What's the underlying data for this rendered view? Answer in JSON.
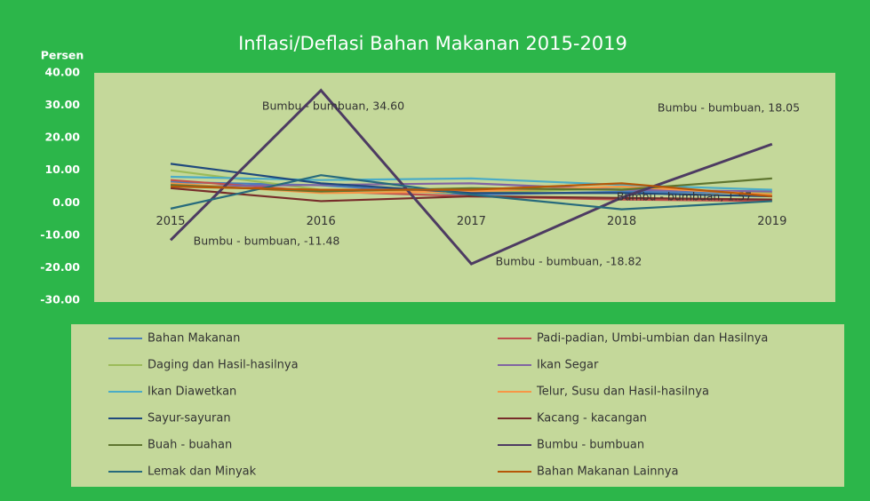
{
  "chart_data": {
    "type": "line",
    "title": "Inflasi/Deflasi Bahan Makanan 2015-2019",
    "y_label": "Persen",
    "categories": [
      "2015",
      "2016",
      "2017",
      "2018",
      "2019"
    ],
    "ylim": [
      -30,
      40
    ],
    "yticks": [
      {
        "value": -30,
        "label": "-30.00"
      },
      {
        "value": -20,
        "label": "-20.00"
      },
      {
        "value": -10,
        "label": "-10.00"
      },
      {
        "value": 0,
        "label": "0.00"
      },
      {
        "value": 10,
        "label": "10.00"
      },
      {
        "value": 20,
        "label": "20.00"
      },
      {
        "value": 30,
        "label": "30.00"
      },
      {
        "value": 40,
        "label": "40.00"
      }
    ],
    "series": [
      {
        "name": "Bahan Makanan",
        "color": "#4a7ebb",
        "values": [
          6.4,
          5.4,
          2.5,
          3.4,
          3.0
        ]
      },
      {
        "name": "Padi-padian, Umbi-umbian dan Hasilnya",
        "color": "#c0504d",
        "values": [
          7.0,
          3.5,
          2.0,
          1.0,
          0.5
        ]
      },
      {
        "name": "Daging dan Hasil-hasilnya",
        "color": "#9bbb59",
        "values": [
          10.0,
          4.0,
          3.0,
          4.5,
          3.0
        ]
      },
      {
        "name": "Ikan Segar",
        "color": "#8064a2",
        "values": [
          5.0,
          5.5,
          6.0,
          4.0,
          3.5
        ]
      },
      {
        "name": "Ikan Diawetkan",
        "color": "#4bacc6",
        "values": [
          8.0,
          7.0,
          7.5,
          5.5,
          4.0
        ]
      },
      {
        "name": "Telur, Susu dan Hasil-hasilnya",
        "color": "#f79646",
        "values": [
          6.0,
          3.0,
          3.5,
          5.0,
          2.5
        ]
      },
      {
        "name": "Sayur-sayuran",
        "color": "#1f497d",
        "values": [
          12.0,
          6.0,
          3.0,
          3.0,
          2.0
        ]
      },
      {
        "name": "Kacang - kacangan",
        "color": "#772c2a",
        "values": [
          4.5,
          0.5,
          2.0,
          1.5,
          1.0
        ]
      },
      {
        "name": "Buah - buahan",
        "color": "#5f7530",
        "values": [
          5.5,
          3.5,
          4.5,
          4.0,
          7.5
        ]
      },
      {
        "name": "Bumbu - bumbuan",
        "color": "#4d3b62",
        "values": [
          -11.48,
          34.6,
          -18.82,
          1.57,
          18.05
        ],
        "value_labels": [
          "Bumbu - bumbuan, -11.48",
          "Bumbu - bumbuan, 34.60",
          "Bumbu - bumbuan, -18.82",
          "Bumbu - bumbuan, 1.57",
          "Bumbu - bumbuan, 18.05"
        ]
      },
      {
        "name": "Lemak dan Minyak",
        "color": "#276a7c",
        "values": [
          -1.8,
          8.5,
          2.5,
          -2.0,
          0.5
        ]
      },
      {
        "name": "Bahan Makanan Lainnya",
        "color": "#b65708",
        "values": [
          5.0,
          4.0,
          4.0,
          6.0,
          2.0
        ]
      }
    ]
  }
}
